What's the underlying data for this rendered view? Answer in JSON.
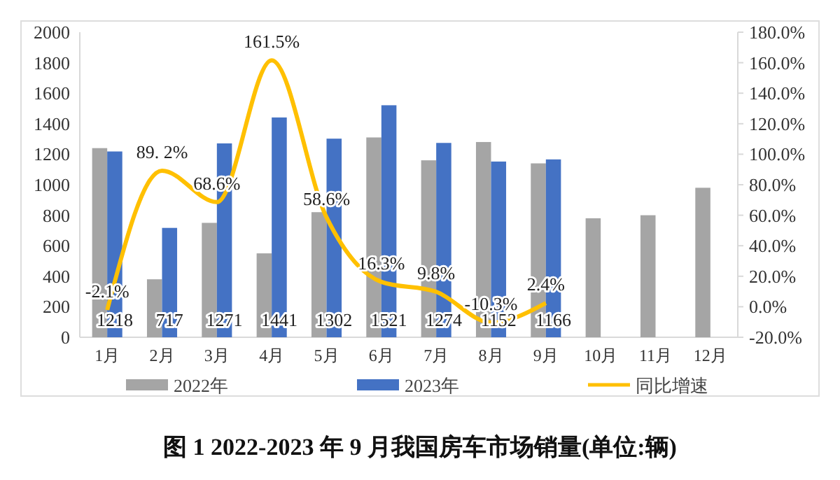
{
  "chart_data": {
    "type": "bar",
    "title": "图 1 2022-2023 年 9 月我国房车市场销量(单位:辆)",
    "categories": [
      "1月",
      "2月",
      "3月",
      "4月",
      "5月",
      "6月",
      "7月",
      "8月",
      "9月",
      "10月",
      "11月",
      "12月"
    ],
    "series": [
      {
        "name": "2022年",
        "color": "#a5a5a5",
        "values": [
          1240,
          380,
          750,
          550,
          820,
          1310,
          1160,
          1280,
          1140,
          780,
          800,
          980
        ]
      },
      {
        "name": "2023年",
        "color": "#4472c4",
        "values": [
          1218,
          717,
          1271,
          1441,
          1302,
          1521,
          1274,
          1152,
          1166,
          null,
          null,
          null
        ],
        "value_labels": [
          "1218",
          "717",
          "1271",
          "1441",
          "1302",
          "1521",
          "1274",
          "1152",
          "1166",
          null,
          null,
          null
        ]
      },
      {
        "name": "同比增速",
        "type": "line",
        "axis": "y2",
        "color": "#ffc000",
        "values": [
          -2.1,
          89.2,
          68.6,
          161.5,
          58.6,
          16.3,
          9.8,
          -10.3,
          2.4,
          null,
          null,
          null
        ],
        "value_labels": [
          "-2.1%",
          "89. 2%",
          "68.6%",
          "161.5%",
          "58.6%",
          "16.3%",
          "9.8%",
          "-10.3%",
          "2.4%",
          null,
          null,
          null
        ]
      }
    ],
    "ylim": [
      0,
      2000
    ],
    "yticks": [
      0,
      200,
      400,
      600,
      800,
      1000,
      1200,
      1400,
      1600,
      1800,
      2000
    ],
    "y2lim": [
      -20,
      180
    ],
    "y2ticks": [
      {
        "value": -20,
        "label": "-20.0%"
      },
      {
        "value": 0,
        "label": "0.0%"
      },
      {
        "value": 20,
        "label": "20.0%"
      },
      {
        "value": 40,
        "label": "40.0%"
      },
      {
        "value": 60,
        "label": "60.0%"
      },
      {
        "value": 80,
        "label": "80.0%"
      },
      {
        "value": 100,
        "label": "100.0%"
      },
      {
        "value": 120,
        "label": "120.0%"
      },
      {
        "value": 140,
        "label": "140.0%"
      },
      {
        "value": 160,
        "label": "160.0%"
      },
      {
        "value": 180,
        "label": "180.0%"
      }
    ],
    "legend": "bottom",
    "grid": false
  }
}
